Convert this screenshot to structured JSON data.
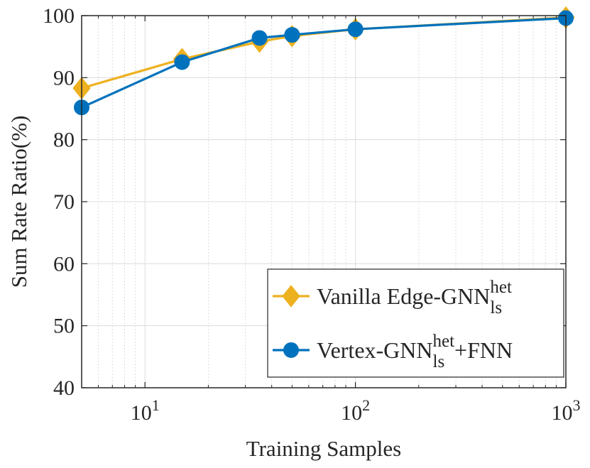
{
  "chart_data": {
    "type": "line",
    "title": "",
    "xlabel": "Training Samples",
    "ylabel": "Sum Rate Ratio(%)",
    "xscale": "log",
    "xlim": [
      5,
      1000
    ],
    "ylim": [
      40,
      100
    ],
    "grid": true,
    "legend_position": "bottom-right",
    "x": [
      5,
      15,
      35,
      50,
      100,
      1000
    ],
    "y_ticks": [
      40,
      50,
      60,
      70,
      80,
      90,
      100
    ],
    "x_ticks": [
      {
        "value": 10,
        "base": "10",
        "exp": "1"
      },
      {
        "value": 100,
        "base": "10",
        "exp": "2"
      },
      {
        "value": 1000,
        "base": "10",
        "exp": "3"
      }
    ],
    "series": [
      {
        "name": "Vanilla Edge-GNN",
        "name_sup": "het",
        "name_sub": "ls",
        "name_suffix": "",
        "color": "#EDB120",
        "marker": "diamond",
        "values": [
          88.3,
          93.0,
          95.8,
          96.7,
          97.8,
          99.7
        ]
      },
      {
        "name": "Vertex-GNN",
        "name_sup": "het",
        "name_sub": "ls",
        "name_suffix": "+FNN",
        "color": "#0072BD",
        "marker": "circle",
        "values": [
          85.2,
          92.5,
          96.4,
          96.9,
          97.8,
          99.6
        ]
      }
    ]
  }
}
